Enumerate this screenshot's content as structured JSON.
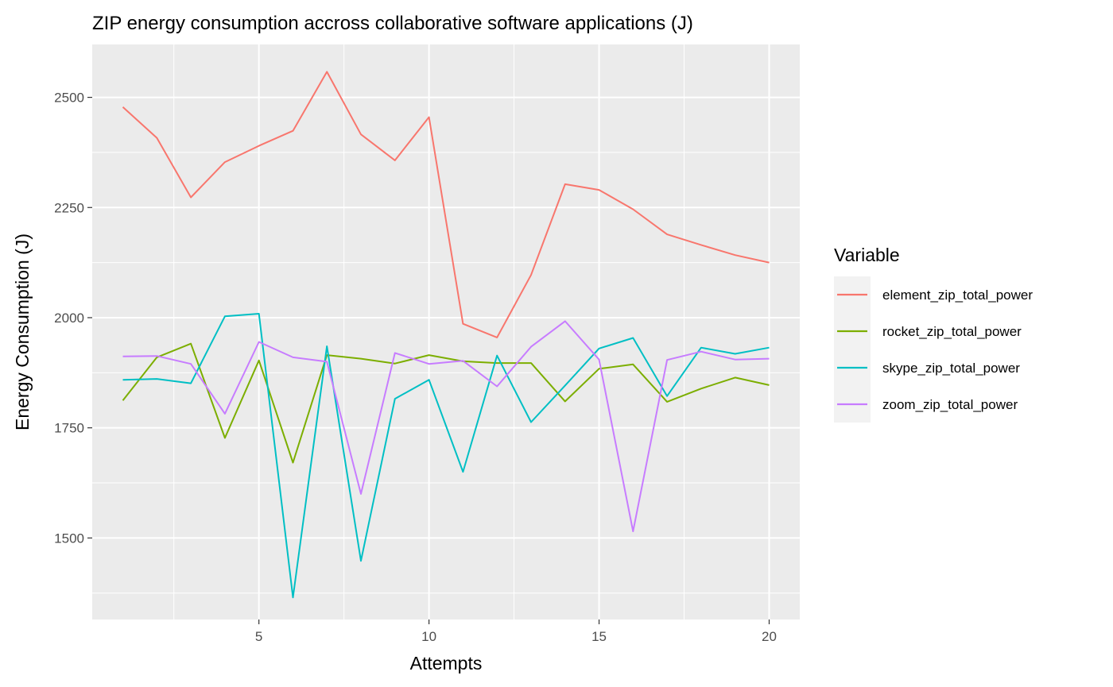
{
  "chart_data": {
    "type": "line",
    "title": "ZIP energy consumption accross collaborative software applications (J)",
    "xlabel": "Attempts",
    "ylabel": "Energy Consumption (J)",
    "xlim": [
      0.1,
      20.9
    ],
    "ylim": [
      1315,
      2620
    ],
    "x_ticks": [
      5,
      10,
      15,
      20
    ],
    "y_ticks": [
      1500,
      1750,
      2000,
      2250,
      2500
    ],
    "grid": true,
    "legend": {
      "title": "Variable",
      "position": "right"
    },
    "x": [
      1,
      2,
      3,
      4,
      5,
      6,
      7,
      8,
      9,
      10,
      11,
      12,
      13,
      14,
      15,
      16,
      17,
      18,
      19,
      20
    ],
    "series": [
      {
        "name": "element_zip_total_power",
        "color": "#F8766D",
        "values": [
          2478,
          2408,
          2273,
          2353,
          2390,
          2424,
          2558,
          2416,
          2357,
          2455,
          1986,
          1955,
          2097,
          2303,
          2290,
          2246,
          2189,
          2165,
          2142,
          2125
        ]
      },
      {
        "name": "rocket_zip_total_power",
        "color": "#7CAE00",
        "values": [
          1812,
          1910,
          1941,
          1727,
          1903,
          1671,
          1915,
          1907,
          1896,
          1915,
          1901,
          1897,
          1897,
          1810,
          1884,
          1894,
          1809,
          1839,
          1864,
          1847
        ]
      },
      {
        "name": "skype_zip_total_power",
        "color": "#00BFC4",
        "values": [
          1859,
          1861,
          1851,
          2003,
          2009,
          1365,
          1935,
          1448,
          1816,
          1859,
          1650,
          1914,
          1763,
          1846,
          1930,
          1954,
          1822,
          1932,
          1918,
          1932
        ]
      },
      {
        "name": "zoom_zip_total_power",
        "color": "#C77CFF",
        "values": [
          1912,
          1913,
          1895,
          1782,
          1945,
          1910,
          1900,
          1600,
          1920,
          1895,
          1902,
          1844,
          1934,
          1992,
          1905,
          1515,
          1904,
          1923,
          1905,
          1907
        ]
      }
    ]
  }
}
